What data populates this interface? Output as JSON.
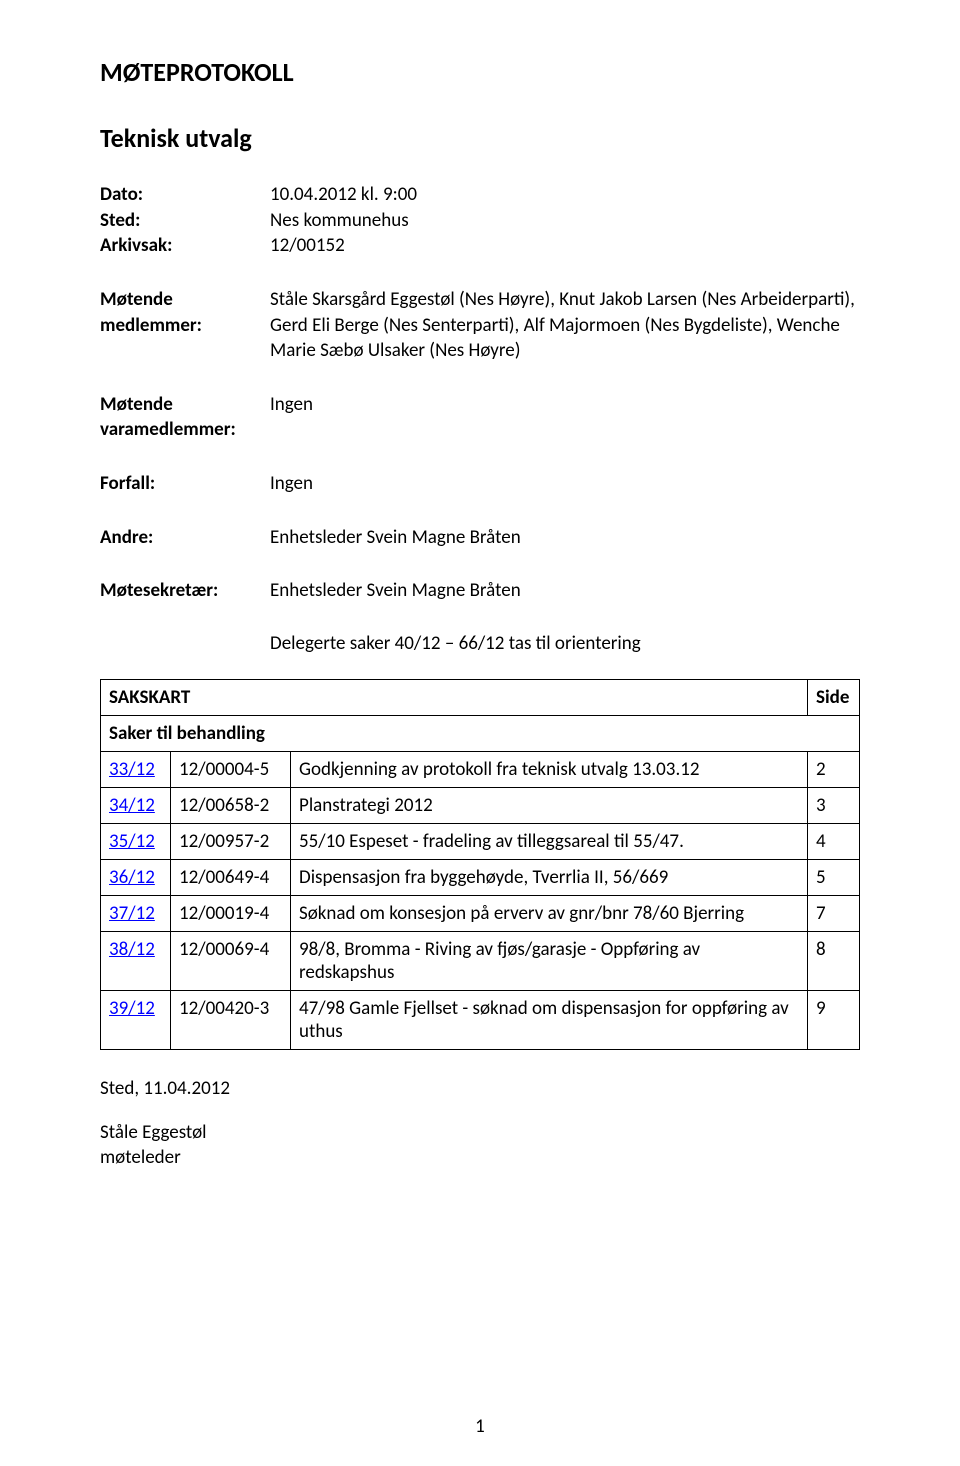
{
  "doc": {
    "title": "MØTEPROTOKOLL",
    "subtitle": "Teknisk utvalg"
  },
  "meta": {
    "dato_label": "Dato:",
    "dato_value": "10.04.2012 kl. 9:00",
    "sted_label": "Sted:",
    "sted_value": "Nes kommunehus",
    "arkivsak_label": "Arkivsak:",
    "arkivsak_value": "12/00152"
  },
  "members": [
    {
      "label": "Møtende\nmedlemmer:",
      "value": "Ståle Skarsgård Eggestøl (Nes Høyre), Knut Jakob Larsen (Nes Arbeiderparti), Gerd Eli Berge (Nes Senterparti), Alf Majormoen (Nes Bygdeliste), Wenche Marie Sæbø Ulsaker (Nes Høyre)"
    },
    {
      "label": "Møtende\nvaramedlemmer:",
      "value": "Ingen"
    },
    {
      "label": "Forfall:",
      "value": "Ingen"
    },
    {
      "label": "Andre:",
      "value": "Enhetsleder Svein Magne Bråten"
    },
    {
      "label": "Møtesekretær:",
      "value": "Enhetsleder Svein Magne Bråten"
    }
  ],
  "delegerte": "Delegerte saker 40/12 – 66/12 tas til orientering",
  "table": {
    "header_left": "SAKSKART",
    "header_right": "Side",
    "section": "Saker til behandling",
    "rows": [
      {
        "sak": "33/12",
        "arkiv": "12/00004-5",
        "title": "Godkjenning av protokoll fra teknisk utvalg 13.03.12",
        "side": "2"
      },
      {
        "sak": "34/12",
        "arkiv": "12/00658-2",
        "title": "Planstrategi 2012",
        "side": "3"
      },
      {
        "sak": "35/12",
        "arkiv": "12/00957-2",
        "title": "55/10 Espeset - fradeling av tilleggsareal til 55/47.",
        "side": "4"
      },
      {
        "sak": "36/12",
        "arkiv": "12/00649-4",
        "title": "Dispensasjon fra byggehøyde, Tverrlia II, 56/669",
        "side": "5"
      },
      {
        "sak": "37/12",
        "arkiv": "12/00019-4",
        "title": "Søknad om konsesjon på erverv av gnr/bnr 78/60 Bjerring",
        "side": "7"
      },
      {
        "sak": "38/12",
        "arkiv": "12/00069-4",
        "title": "98/8, Bromma - Riving av fjøs/garasje - Oppføring av redskapshus",
        "side": "8"
      },
      {
        "sak": "39/12",
        "arkiv": "12/00420-3",
        "title": "47/98 Gamle Fjellset - søknad om dispensasjon for oppføring av uthus",
        "side": "9"
      }
    ]
  },
  "footer": {
    "sted_dato": "Sted, 11.04.2012",
    "sign_name": "Ståle Eggestøl",
    "sign_role": "møteleder"
  },
  "page_number": "1",
  "colors": {
    "link": "#0000ff",
    "text": "#000000",
    "border": "#000000",
    "background": "#ffffff"
  },
  "fonts": {
    "base_size_pt": 14,
    "heading_size_pt": 20
  }
}
